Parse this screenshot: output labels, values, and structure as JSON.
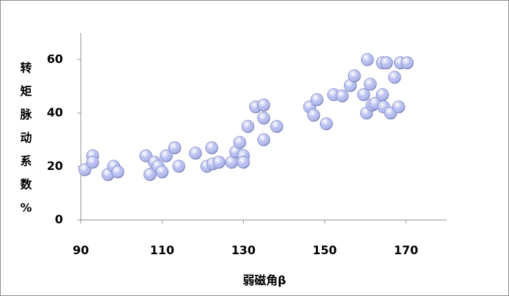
{
  "chart_data": {
    "type": "scatter",
    "x_label": "弱磁角β",
    "y_label": "转矩脉动系数%",
    "xlim": [
      90,
      180
    ],
    "xticks": [
      90,
      110,
      130,
      150,
      170
    ],
    "ylim": [
      0,
      70
    ],
    "yticks": [
      0,
      20,
      40,
      60
    ],
    "grid": false,
    "color": "#b4bcf0",
    "x": [
      91,
      92.9,
      92.9,
      96.7,
      98.1,
      99.1,
      106,
      107,
      108.1,
      109,
      110,
      111,
      113.1,
      114.1,
      118.2,
      121,
      122.2,
      122.5,
      124,
      127.1,
      128.1,
      129.1,
      130,
      130,
      131.1,
      133,
      135,
      135,
      135,
      138.2,
      146.3,
      147.3,
      148.1,
      150.4,
      152.2,
      154.3,
      156.3,
      157.3,
      159.6,
      160.5,
      160.3,
      161.2,
      161.7,
      162.4,
      164.2,
      164.2,
      164.5,
      165.2,
      166.2,
      167.2,
      168.2,
      168.6,
      170.3
    ],
    "values": [
      18.8,
      24,
      21.6,
      17,
      20.1,
      18,
      24,
      17,
      21.6,
      20.1,
      18,
      24,
      27,
      20.1,
      25,
      20.1,
      27,
      21,
      21.6,
      21.6,
      25.5,
      29,
      24,
      21.6,
      35,
      42.3,
      43,
      38.1,
      30,
      35,
      42.3,
      39.2,
      45,
      36,
      46.9,
      46.4,
      50.3,
      53.9,
      46.9,
      60,
      40,
      50.8,
      43,
      43.6,
      58.8,
      46.9,
      42.3,
      58.8,
      40,
      53.4,
      42.3,
      58.8,
      58.8
    ]
  }
}
